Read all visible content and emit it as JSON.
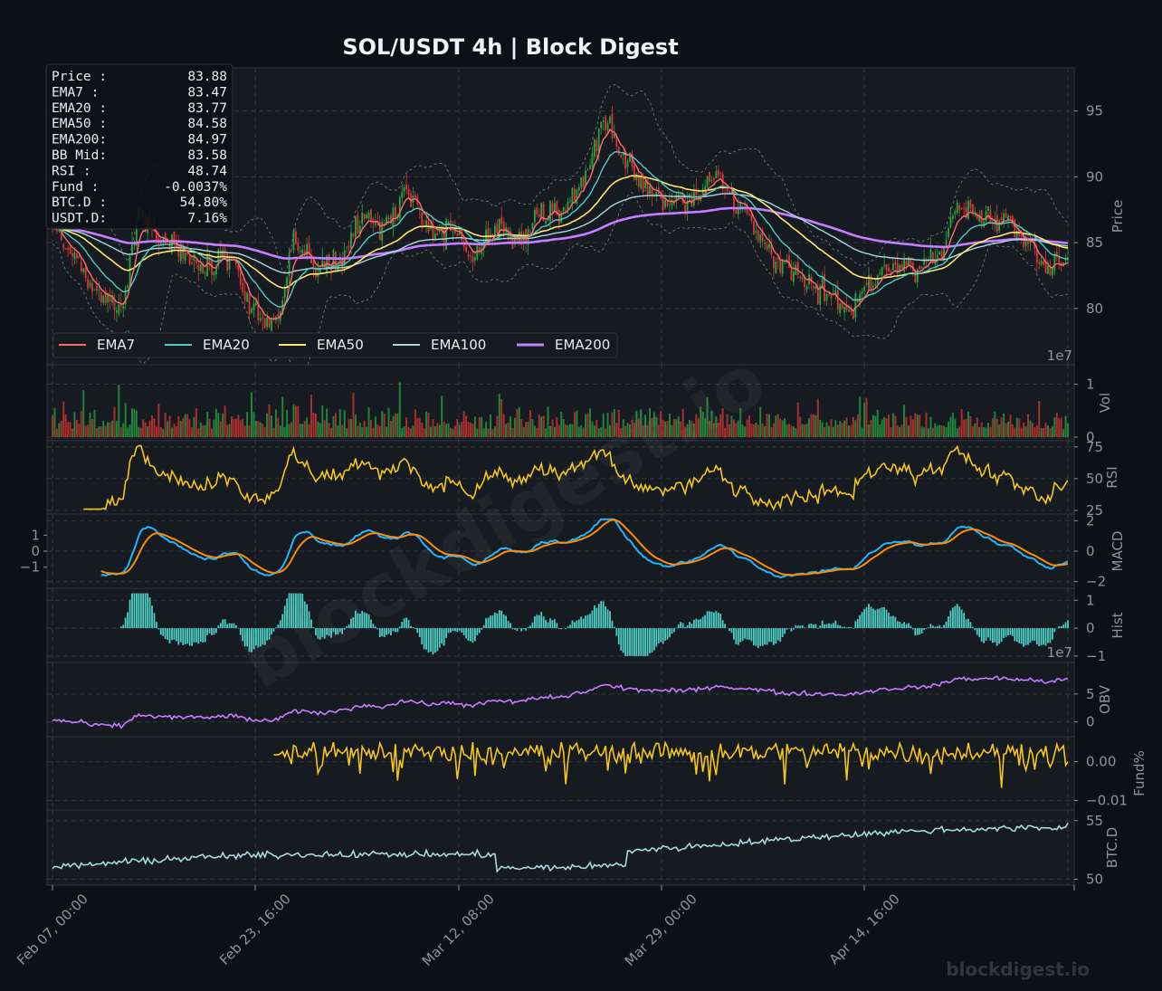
{
  "title": "SOL/USDT  4h  |  Block Digest",
  "watermark": {
    "diagonal": "blockdigest.io",
    "corner": "blockdigest.io"
  },
  "info_box": [
    {
      "label": "Price :",
      "value": "83.88"
    },
    {
      "label": "EMA7  :",
      "value": "83.47"
    },
    {
      "label": "EMA20 :",
      "value": "83.77"
    },
    {
      "label": "EMA50 :",
      "value": "84.58"
    },
    {
      "label": "EMA200:",
      "value": "84.97"
    },
    {
      "label": "BB Mid:",
      "value": "83.58"
    },
    {
      "label": "RSI   :",
      "value": "48.74"
    },
    {
      "label": "Fund  :",
      "value": "-0.0037%"
    },
    {
      "label": "BTC.D :",
      "value": "54.80%"
    },
    {
      "label": "USDT.D:",
      "value": "7.16%"
    }
  ],
  "colors": {
    "background": "#0d1117",
    "panel": "#161b22",
    "candle_up": "#26a641",
    "candle_down": "#da3633",
    "ema7": "#ff6b6b",
    "ema20": "#4ecdc4",
    "ema50": "#ffe66d",
    "ema100": "#a8dadc",
    "ema200": "#c77dff",
    "rsi": "#f5c518",
    "macd": "#1fb6ff",
    "signal": "#ff8c00",
    "hist": "#4ecdc4",
    "obv": "#c77dff",
    "fund": "#f5c518",
    "btcd": "#a8dadc"
  },
  "x_axis": {
    "ticks": [
      "Feb 07, 00:00",
      "Feb 23, 16:00",
      "Mar 12, 08:00",
      "Mar 29, 00:00",
      "Apr 14, 16:00"
    ]
  },
  "chart_data": [
    {
      "panel": "price",
      "type": "candlestick",
      "ylabel": "Price",
      "ylim": [
        76,
        98
      ],
      "yticks": [
        80,
        85,
        90,
        95
      ],
      "scale_note": "1e7",
      "grid": true,
      "legend": {
        "placement": "bottom-left",
        "entries": [
          "EMA7",
          "EMA20",
          "EMA50",
          "EMA100",
          "EMA200"
        ]
      },
      "bollinger_bands": true,
      "n_candles": 460,
      "anchors": [
        [
          0,
          86
        ],
        [
          10,
          84
        ],
        [
          20,
          81
        ],
        [
          30,
          80
        ],
        [
          40,
          87
        ],
        [
          50,
          85
        ],
        [
          60,
          84
        ],
        [
          70,
          83
        ],
        [
          80,
          84
        ],
        [
          90,
          80
        ],
        [
          100,
          79
        ],
        [
          110,
          85
        ],
        [
          120,
          83
        ],
        [
          130,
          84
        ],
        [
          140,
          87
        ],
        [
          150,
          86
        ],
        [
          160,
          89
        ],
        [
          170,
          86
        ],
        [
          180,
          86
        ],
        [
          190,
          84
        ],
        [
          200,
          86
        ],
        [
          210,
          85
        ],
        [
          220,
          87
        ],
        [
          230,
          87
        ],
        [
          240,
          90
        ],
        [
          250,
          94
        ],
        [
          260,
          91
        ],
        [
          270,
          89
        ],
        [
          280,
          88
        ],
        [
          290,
          88
        ],
        [
          300,
          90
        ],
        [
          310,
          88
        ],
        [
          320,
          86
        ],
        [
          330,
          83
        ],
        [
          340,
          82
        ],
        [
          350,
          81
        ],
        [
          360,
          80
        ],
        [
          370,
          82
        ],
        [
          380,
          83
        ],
        [
          390,
          83
        ],
        [
          400,
          84
        ],
        [
          410,
          88
        ],
        [
          420,
          87
        ],
        [
          430,
          87
        ],
        [
          440,
          85
        ],
        [
          450,
          83
        ],
        [
          459,
          84
        ]
      ],
      "ema7_last": 83.47,
      "ema20_last": 83.77,
      "ema50_last": 84.58,
      "ema200_last": 84.97,
      "price_last": 83.88
    },
    {
      "panel": "volume",
      "type": "bar",
      "ylabel": "Vol",
      "ylim": [
        0,
        1.3
      ],
      "yticks": [
        0,
        1
      ],
      "scale_note": "1e7"
    },
    {
      "panel": "rsi",
      "type": "line",
      "ylabel": "RSI",
      "ylim": [
        25,
        77
      ],
      "yticks": [
        25,
        50,
        75
      ],
      "last": 48.74
    },
    {
      "panel": "macd",
      "type": "line",
      "ylabel": "MACD",
      "ylim": [
        -2.2,
        2.2
      ],
      "yticks_right": [
        -2,
        0,
        2
      ],
      "yticks_left": [
        "1",
        "0",
        "−1"
      ],
      "series": [
        {
          "name": "MACD"
        },
        {
          "name": "Signal"
        }
      ]
    },
    {
      "panel": "hist",
      "type": "bar",
      "ylabel": "Hist",
      "ylim": [
        -1.1,
        1.3
      ],
      "yticks": [
        1,
        0,
        -1
      ],
      "scale_note": "1e7"
    },
    {
      "panel": "obv",
      "type": "line",
      "ylabel": "OBV",
      "ylim": [
        -2,
        10
      ],
      "yticks": [
        0,
        5
      ]
    },
    {
      "panel": "fund",
      "type": "line",
      "ylabel": "Fund%",
      "ylim": [
        -0.0115,
        0.0055
      ],
      "yticks": [
        "0.00",
        "−0.01"
      ],
      "last_pct": -0.0037
    },
    {
      "panel": "btcd",
      "type": "line",
      "ylabel": "BTC.D",
      "ylim": [
        49.8,
        55.6
      ],
      "yticks": [
        50,
        55
      ],
      "last": 54.8
    }
  ]
}
